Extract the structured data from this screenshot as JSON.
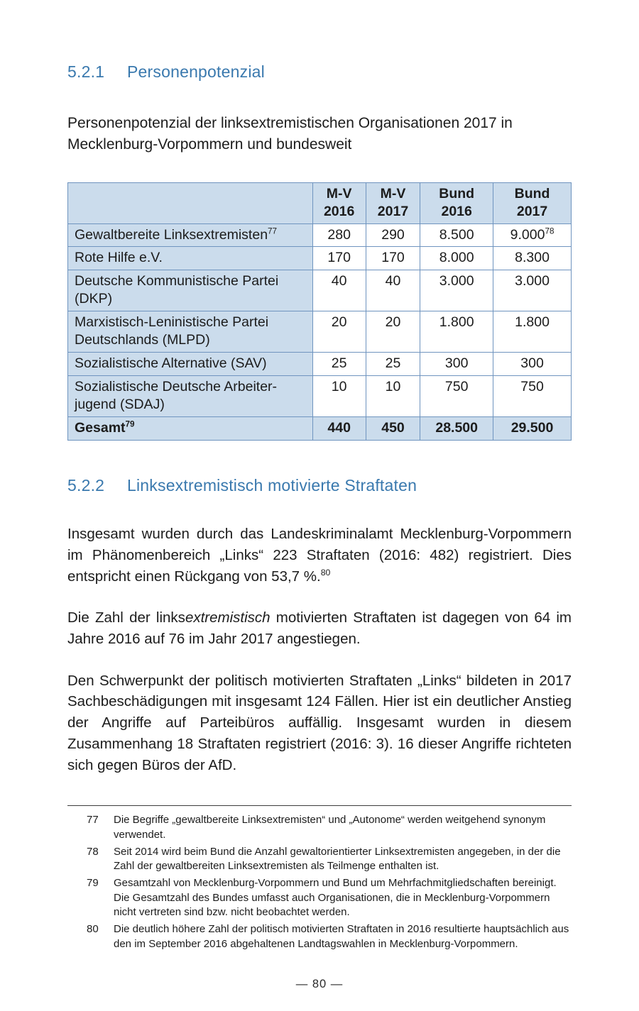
{
  "section1": {
    "heading_number": "5.2.1",
    "heading_title": "Personenpotenzial",
    "intro": "Personenpotenzial der linksextremistischen Organisationen 2017 in Mecklenburg-Vorpommern und bundesweit"
  },
  "table": {
    "columns": [
      {
        "label": "",
        "year": ""
      },
      {
        "label": "M-V",
        "year": "2016"
      },
      {
        "label": "M-V",
        "year": "2017"
      },
      {
        "label": "Bund",
        "year": "2016"
      },
      {
        "label": "Bund",
        "year": "2017"
      }
    ],
    "rows": [
      {
        "label": "Gewaltbereite Linksextremisten",
        "label_sup": "77",
        "bold": false,
        "values": [
          {
            "t": "280"
          },
          {
            "t": "290"
          },
          {
            "t": "8.500"
          },
          {
            "t": "9.000",
            "sup": "78"
          }
        ]
      },
      {
        "label": "Rote Hilfe e.V.",
        "label_sup": "",
        "bold": false,
        "values": [
          {
            "t": "170"
          },
          {
            "t": "170"
          },
          {
            "t": "8.000"
          },
          {
            "t": "8.300"
          }
        ]
      },
      {
        "label": "Deutsche Kommunistische Partei\n(DKP)",
        "label_sup": "",
        "bold": false,
        "values": [
          {
            "t": "40"
          },
          {
            "t": "40"
          },
          {
            "t": "3.000"
          },
          {
            "t": "3.000"
          }
        ]
      },
      {
        "label": "Marxistisch-Leninistische Partei\nDeutschlands (MLPD)",
        "label_sup": "",
        "bold": false,
        "values": [
          {
            "t": "20"
          },
          {
            "t": "20"
          },
          {
            "t": "1.800"
          },
          {
            "t": "1.800"
          }
        ]
      },
      {
        "label": "Sozialistische Alternative (SAV)",
        "label_sup": "",
        "bold": false,
        "values": [
          {
            "t": "25"
          },
          {
            "t": "25"
          },
          {
            "t": "300"
          },
          {
            "t": "300"
          }
        ]
      },
      {
        "label": "Sozialistische Deutsche Arbeiter-\njugend (SDAJ)",
        "label_sup": "",
        "bold": false,
        "values": [
          {
            "t": "10"
          },
          {
            "t": "10"
          },
          {
            "t": "750"
          },
          {
            "t": "750"
          }
        ]
      },
      {
        "label": "Gesamt",
        "label_sup": "79",
        "bold": true,
        "values": [
          {
            "t": "440"
          },
          {
            "t": "450"
          },
          {
            "t": "28.500"
          },
          {
            "t": "29.500"
          }
        ]
      }
    ]
  },
  "section2": {
    "heading_number": "5.2.2",
    "heading_title": "Linksextremistisch motivierte Straftaten",
    "paragraphs": [
      {
        "segments": [
          {
            "text": "Insgesamt wurden durch das Landeskriminalamt Mecklenburg-Vorpommern im Phänomenbereich „Links“ 223 Straftaten (2016: 482) registriert. Dies entspricht einen Rückgang von 53,7 %.",
            "style": ""
          },
          {
            "text": "80",
            "style": "sup"
          }
        ]
      },
      {
        "segments": [
          {
            "text": "Die Zahl der links",
            "style": ""
          },
          {
            "text": "extremistisch",
            "style": "italic"
          },
          {
            "text": " motivierten Straftaten ist dagegen von 64 im Jahre 2016 auf 76 im Jahr 2017 angestiegen.",
            "style": ""
          }
        ]
      },
      {
        "segments": [
          {
            "text": "Den Schwerpunkt der politisch motivierten Straftaten „Links“ bildeten in 2017 Sachbeschädigungen mit insgesamt 124 Fällen. Hier ist ein deutlicher Anstieg der Angriffe auf Parteibüros auffällig. Insgesamt wurden in diesem Zusammenhang 18 Straftaten registriert (2016: 3). 16 dieser Angriffe richteten sich gegen Büros der AfD.",
            "style": ""
          }
        ]
      }
    ]
  },
  "footnotes": [
    {
      "num": "77",
      "text": "Die Begriffe „gewaltbereite Linksextremisten“ und „Autonome“ werden weitgehend synonym verwendet."
    },
    {
      "num": "78",
      "text": "Seit 2014 wird beim Bund die Anzahl gewaltorientierter Linksextremisten angegeben, in der die Zahl der gewaltbereiten Linksextremisten als Teilmenge enthalten ist."
    },
    {
      "num": "79",
      "text": "Gesamtzahl von Mecklenburg-Vorpommern und Bund um Mehrfachmitgliedschaften bereinigt. Die Gesamtzahl des Bundes umfasst auch Organisationen, die in Mecklenburg-Vorpommern nicht vertreten sind bzw. nicht beobachtet werden."
    },
    {
      "num": "80",
      "text": "Die deutlich höhere Zahl der politisch motivierten Straftaten in 2016 resultierte hauptsächlich aus den im September 2016 abgehaltenen Landtagswahlen in Mecklenburg-Vorpommern."
    }
  ],
  "page": {
    "footer": "—  80  —"
  },
  "colors": {
    "heading_blue": "#3a79ae",
    "table_border": "#6f94bf",
    "table_shading": "#cbdcec"
  }
}
